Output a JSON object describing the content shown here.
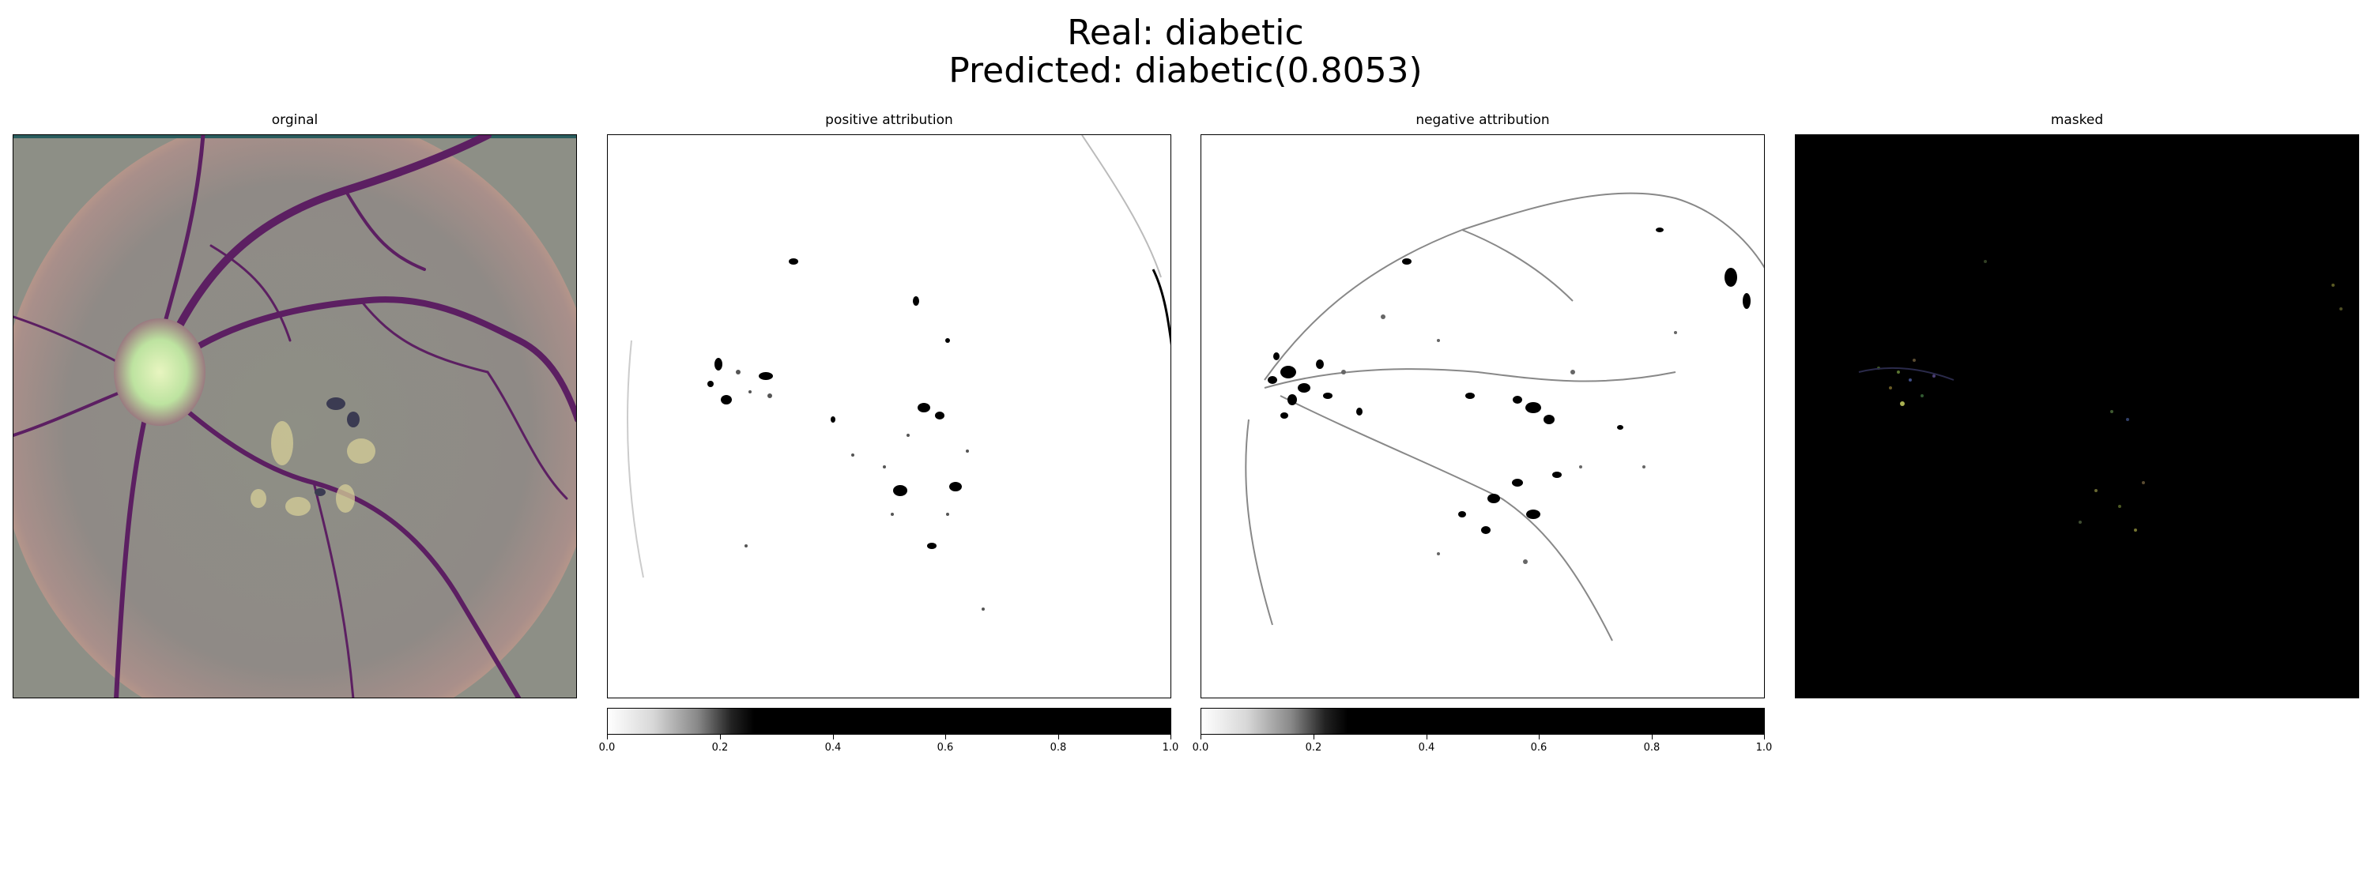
{
  "figure": {
    "title_line1": "Real: diabetic",
    "title_line2": "Predicted: diabetic(0.8053)"
  },
  "panels": [
    {
      "title": "orginal"
    },
    {
      "title": "positive attribution"
    },
    {
      "title": "negative attribution"
    },
    {
      "title": "masked"
    }
  ],
  "colorbar": {
    "ticks": [
      "0.0",
      "0.2",
      "0.4",
      "0.6",
      "0.8",
      "1.0"
    ]
  },
  "colors": {
    "retina_base": "#8c8a84",
    "vessel": "#5a1c5e",
    "optic_disc": "#cde8a0",
    "mask_background": "#000000"
  }
}
